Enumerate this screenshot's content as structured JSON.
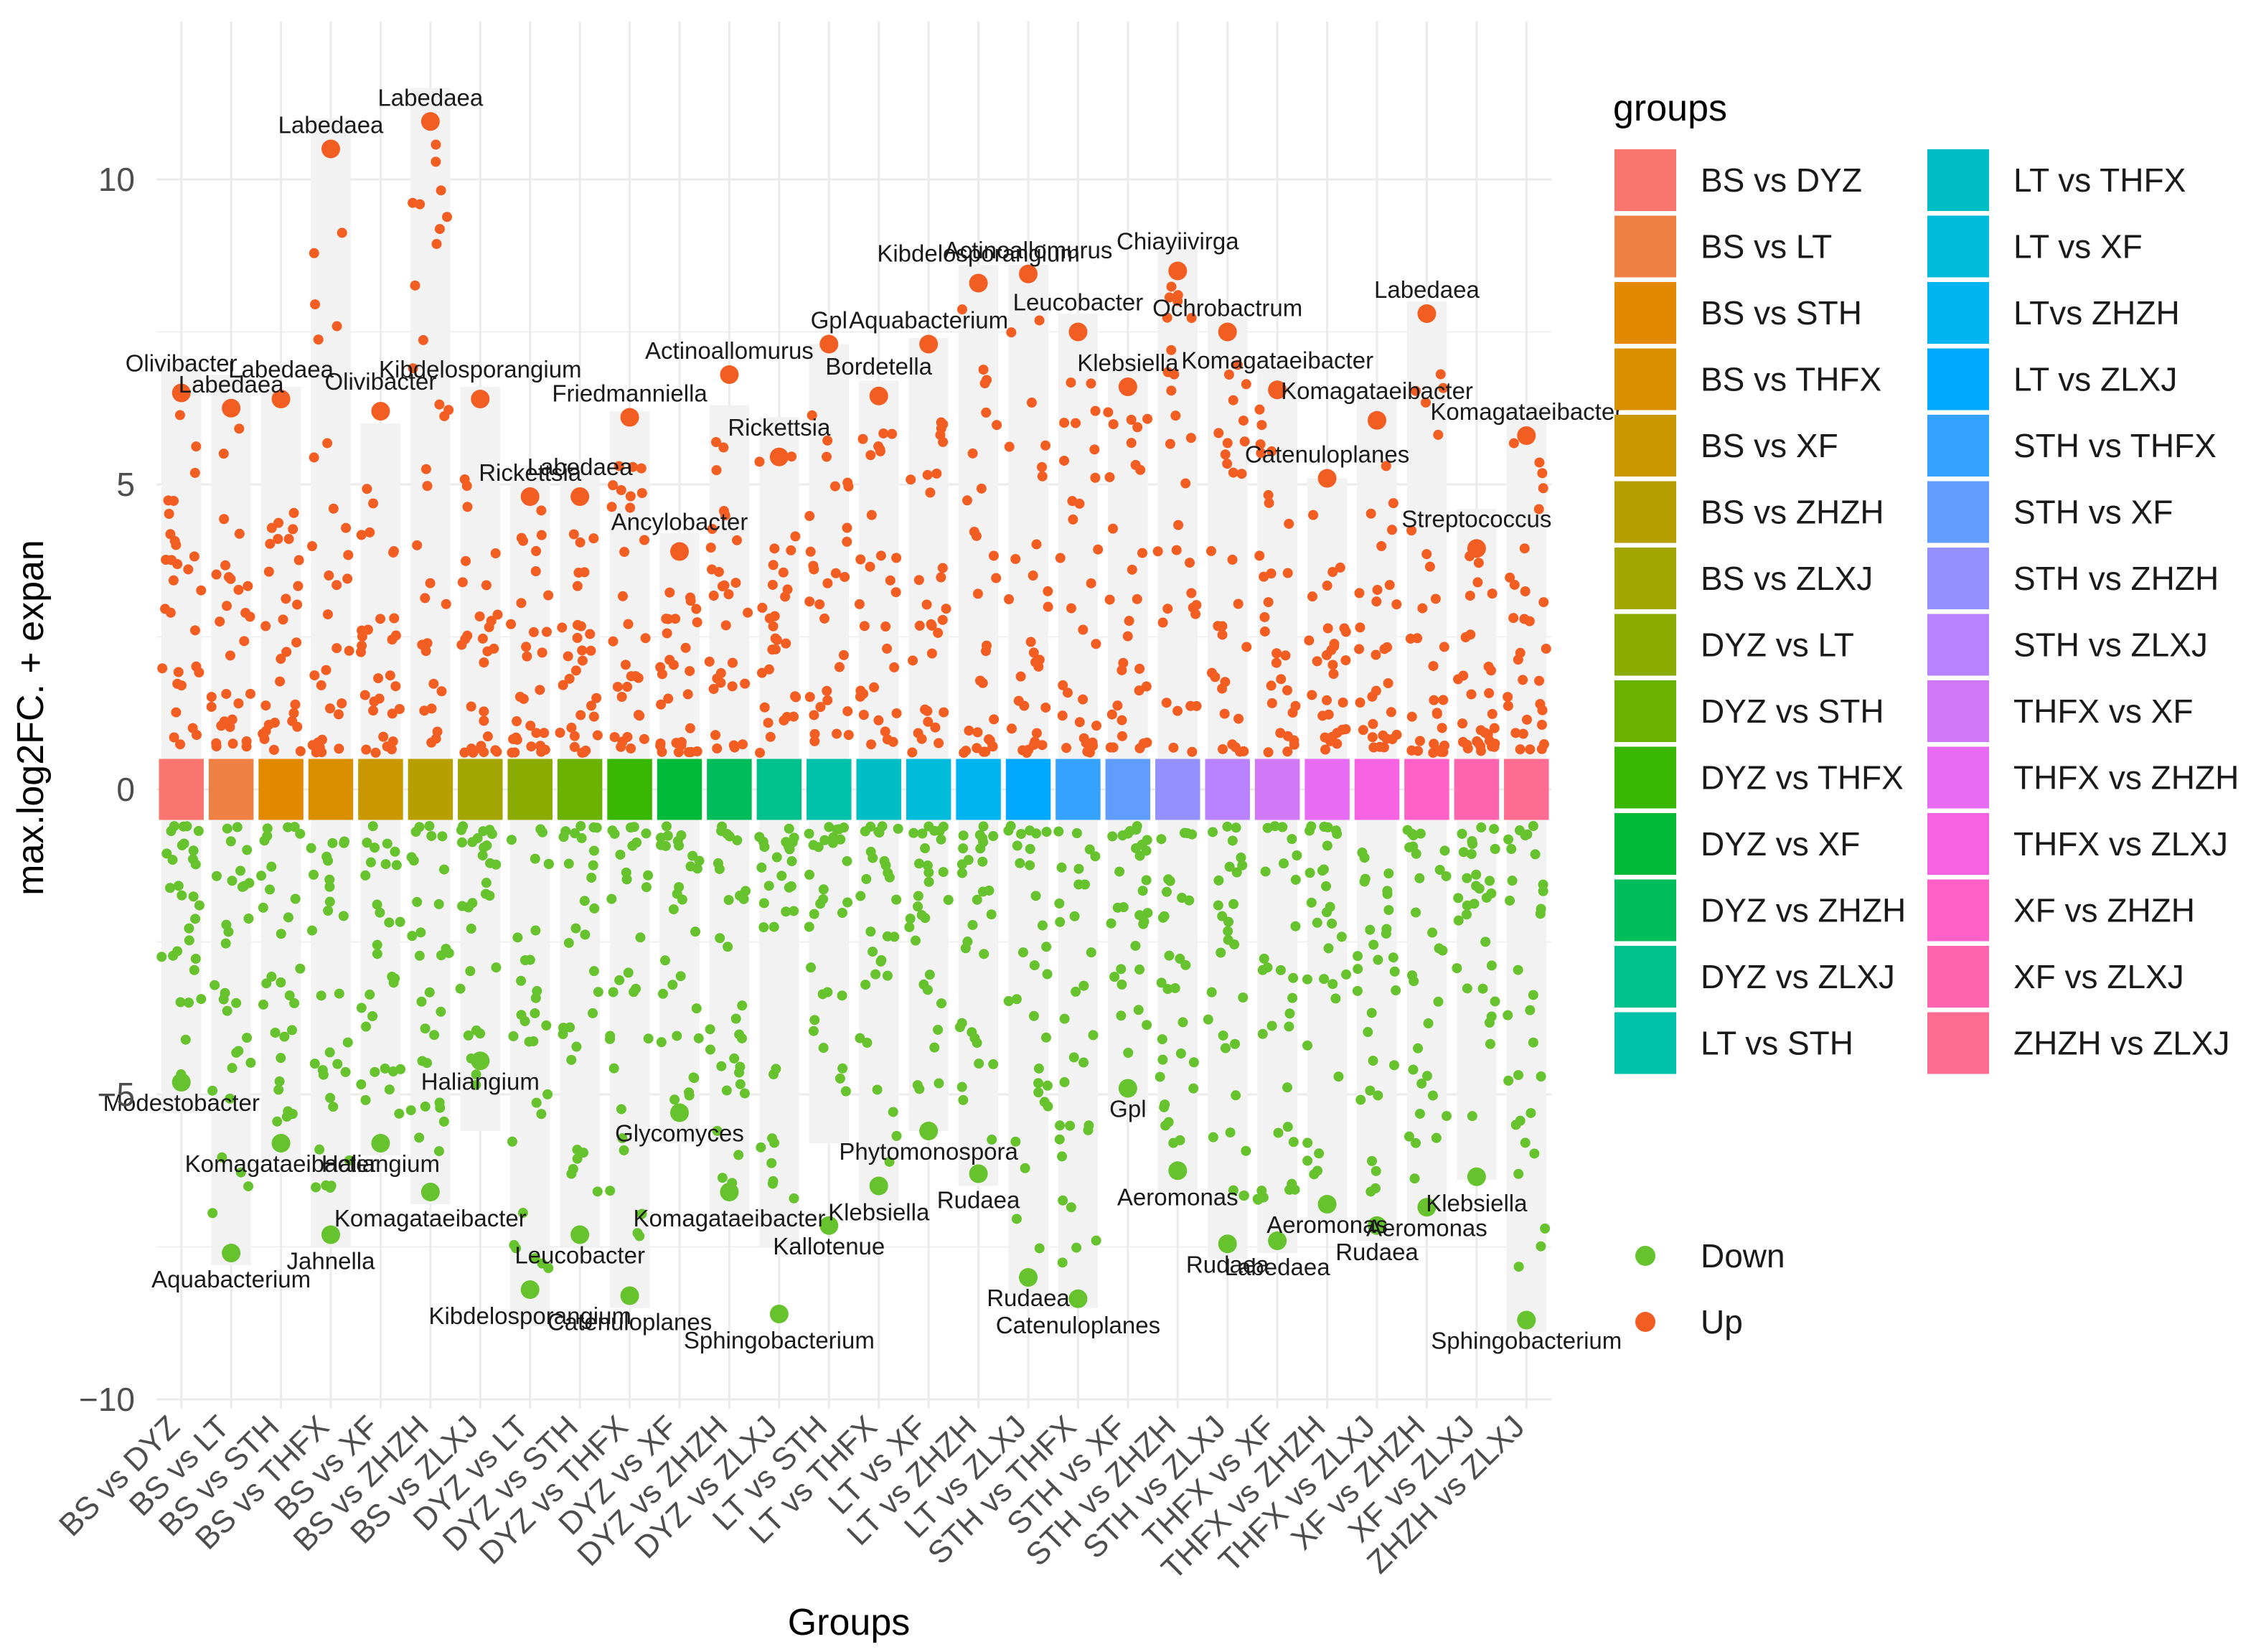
{
  "chart_data": {
    "type": "scatter",
    "xlabel": "Groups",
    "ylabel": "max.log2FC. + expan",
    "ylim": [
      -10,
      12
    ],
    "yticks": [
      -10,
      -5,
      0,
      5,
      10
    ],
    "grid": true,
    "legend_position": "right",
    "groups_legend_title": "groups",
    "categories": [
      "BS vs DYZ",
      "BS vs LT",
      "BS vs STH",
      "BS vs THFX",
      "BS vs XF",
      "BS vs ZHZH",
      "BS vs ZLXJ",
      "DYZ vs LT",
      "DYZ vs STH",
      "DYZ vs THFX",
      "DYZ vs XF",
      "DYZ vs ZHZH",
      "DYZ vs ZLXJ",
      "LT vs STH",
      "LT vs THFX",
      "LT vs XF",
      "LT vs ZHZH",
      "LT vs ZLXJ",
      "STH vs THFX",
      "STH vs XF",
      "STH vs ZHZH",
      "STH vs ZLXJ",
      "THFX vs XF",
      "THFX vs ZHZH",
      "THFX vs ZLXJ",
      "XF vs ZHZH",
      "XF vs ZLXJ",
      "ZHZH vs ZLXJ"
    ],
    "legend_labels": [
      "BS vs DYZ",
      "BS vs LT",
      "BS vs STH",
      "BS vs THFX",
      "BS vs XF",
      "BS vs ZHZH",
      "BS vs ZLXJ",
      "DYZ vs LT",
      "DYZ vs STH",
      "DYZ vs THFX",
      "DYZ vs XF",
      "DYZ vs ZHZH",
      "DYZ vs ZLXJ",
      "LT vs STH",
      "LT vs THFX",
      "LT vs XF",
      "LTvs ZHZH",
      "LT vs ZLXJ",
      "STH vs THFX",
      "STH vs XF",
      "STH vs ZHZH",
      "STH vs ZLXJ",
      "THFX vs XF",
      "THFX vs ZHZH",
      "THFX vs ZLXJ",
      "XF vs ZHZH",
      "XF vs ZLXJ",
      "ZHZH vs ZLXJ"
    ],
    "group_colors": [
      "#F8766D",
      "#EE8044",
      "#E38900",
      "#D89000",
      "#C99800",
      "#B79F00",
      "#A3A500",
      "#8BAB00",
      "#6BB100",
      "#39B600",
      "#00BA38",
      "#00BD5C",
      "#00C08B",
      "#00C1AA",
      "#00BFC4",
      "#00BBDA",
      "#00B4EF",
      "#00A9FF",
      "#35A2FF",
      "#619CFF",
      "#9590FF",
      "#B983FF",
      "#D078F6",
      "#E76BF3",
      "#F563E3",
      "#FF61C9",
      "#FF65AE",
      "#FF6C91"
    ],
    "bar_up_max": [
      7.0,
      6.8,
      6.6,
      11.0,
      6.0,
      11.5,
      6.6,
      5.2,
      5.3,
      6.2,
      4.2,
      6.3,
      6.1,
      7.3,
      6.7,
      7.4,
      8.6,
      8.6,
      7.8,
      7.0,
      8.9,
      7.8,
      6.9,
      5.1,
      6.4,
      8.0,
      4.6,
      6.3
    ],
    "bar_down_min": [
      -5.3,
      -7.8,
      -6.1,
      -7.5,
      -6.0,
      -6.8,
      -5.6,
      -8.8,
      -7.5,
      -8.5,
      -5.8,
      -7.1,
      -7.5,
      -5.8,
      -6.9,
      -5.6,
      -6.5,
      -8.3,
      -8.5,
      -5.3,
      -6.6,
      -7.7,
      -7.6,
      -7.1,
      -7.4,
      -7.2,
      -6.4,
      -8.9
    ],
    "series": [
      {
        "name": "Down",
        "color": "#66C22D"
      },
      {
        "name": "Up",
        "color": "#F25D22"
      }
    ],
    "labeled_points": [
      {
        "group": 0,
        "value": 6.5,
        "label": "Olivibacter",
        "series": "Up"
      },
      {
        "group": 1,
        "value": 6.25,
        "label": "Labedaea",
        "series": "Up"
      },
      {
        "group": 2,
        "value": 6.4,
        "label": "Labedaea",
        "series": "Up"
      },
      {
        "group": 3,
        "value": 10.5,
        "label": "Labedaea",
        "series": "Up"
      },
      {
        "group": 4,
        "value": 6.2,
        "label": "Olivibacter",
        "series": "Up"
      },
      {
        "group": 5,
        "value": 10.95,
        "label": "Labedaea",
        "series": "Up"
      },
      {
        "group": 6,
        "value": 6.4,
        "label": "Kibdelosporangium",
        "series": "Up"
      },
      {
        "group": 7,
        "value": 4.8,
        "label": "Rickettsia",
        "series": "Up"
      },
      {
        "group": 8,
        "value": 4.8,
        "label": "Labedaea",
        "series": "Up"
      },
      {
        "group": 9,
        "value": 6.1,
        "label": "Friedmanniella",
        "series": "Up"
      },
      {
        "group": 10,
        "value": 3.9,
        "label": "Ancylobacter",
        "series": "Up"
      },
      {
        "group": 11,
        "value": 6.8,
        "label": "Actinoallomurus",
        "series": "Up"
      },
      {
        "group": 12,
        "value": 5.45,
        "label": "Rickettsia",
        "series": "Up"
      },
      {
        "group": 13,
        "value": 7.3,
        "label": "Gpl",
        "series": "Up"
      },
      {
        "group": 14,
        "value": 6.45,
        "label": "Bordetella",
        "series": "Up"
      },
      {
        "group": 15,
        "value": 7.3,
        "label": "Aquabacterium",
        "series": "Up"
      },
      {
        "group": 16,
        "value": 8.3,
        "label": "Kibdelosporangium",
        "series": "Up"
      },
      {
        "group": 17,
        "value": 8.45,
        "label": "Actinoallomurus",
        "series": "Up"
      },
      {
        "group": 18,
        "value": 7.5,
        "label": "Leucobacter",
        "series": "Up"
      },
      {
        "group": 19,
        "value": 6.6,
        "label": "Klebsiella",
        "series": "Up"
      },
      {
        "group": 20,
        "value": 8.5,
        "label": "Chiayiivirga",
        "series": "Up"
      },
      {
        "group": 21,
        "value": 7.5,
        "label": "Ochrobactrum",
        "series": "Up"
      },
      {
        "group": 22,
        "value": 6.55,
        "label": "Komagataeibacter",
        "series": "Up"
      },
      {
        "group": 23,
        "value": 5.1,
        "label": "Catenuloplanes",
        "series": "Up"
      },
      {
        "group": 24,
        "value": 6.05,
        "label": "Komagataeibacter",
        "series": "Up"
      },
      {
        "group": 25,
        "value": 7.8,
        "label": "Labedaea",
        "series": "Up"
      },
      {
        "group": 26,
        "value": 3.95,
        "label": "Streptococcus",
        "series": "Up"
      },
      {
        "group": 27,
        "value": 5.8,
        "label": "Komagataeibacter",
        "series": "Up"
      },
      {
        "group": 0,
        "value": -4.8,
        "label": "Modestobacter",
        "series": "Down"
      },
      {
        "group": 1,
        "value": -7.6,
        "label": "Aquabacterium",
        "series": "Down"
      },
      {
        "group": 2,
        "value": -5.8,
        "label": "Komagataeibacter",
        "series": "Down"
      },
      {
        "group": 3,
        "value": -7.3,
        "label": "Jahnella",
        "series": "Down"
      },
      {
        "group": 4,
        "value": -5.8,
        "label": "Haliangium",
        "series": "Down"
      },
      {
        "group": 5,
        "value": -6.6,
        "label": "Komagataeibacter",
        "series": "Down"
      },
      {
        "group": 6,
        "value": -4.45,
        "label": "Haliangium",
        "series": "Down"
      },
      {
        "group": 7,
        "value": -8.2,
        "label": "Kibdelosporangium",
        "series": "Down"
      },
      {
        "group": 8,
        "value": -7.3,
        "label": "Leucobacter",
        "series": "Down"
      },
      {
        "group": 9,
        "value": -8.3,
        "label": "Catenuloplanes",
        "series": "Down"
      },
      {
        "group": 10,
        "value": -5.3,
        "label": "Glycomyces",
        "series": "Down"
      },
      {
        "group": 11,
        "value": -6.6,
        "label": "Komagataeibacter",
        "series": "Down"
      },
      {
        "group": 13,
        "value": -7.15,
        "label": "Kallotenue",
        "series": "Down"
      },
      {
        "group": 14,
        "value": -6.5,
        "label": "Klebsiella",
        "series": "Down"
      },
      {
        "group": 15,
        "value": -5.6,
        "label": "Phytomonospora",
        "series": "Down"
      },
      {
        "group": 16,
        "value": -6.3,
        "label": "Rudaea",
        "series": "Down"
      },
      {
        "group": 17,
        "value": -8.0,
        "label": "Rudaea",
        "series": "Down"
      },
      {
        "group": 18,
        "value": -8.35,
        "label": "Catenuloplanes",
        "series": "Down"
      },
      {
        "group": 19,
        "value": -4.9,
        "label": "Gpl",
        "series": "Down"
      },
      {
        "group": 20,
        "value": -6.25,
        "label": "Aeromonas",
        "series": "Down"
      },
      {
        "group": 21,
        "value": -7.45,
        "label": "Rudaea",
        "series": "Down"
      },
      {
        "group": 22,
        "value": -7.4,
        "label": "Labedaea",
        "series": "Down"
      },
      {
        "group": 23,
        "value": -6.8,
        "label": "Aeromonas",
        "series": "Down"
      },
      {
        "group": 24,
        "value": -7.15,
        "label": "Rudaea",
        "series": "Down"
      },
      {
        "group": 25,
        "value": -6.85,
        "label": "Aeromonas",
        "series": "Down"
      },
      {
        "group": 26,
        "value": -6.35,
        "label": "Klebsiella",
        "series": "Down"
      },
      {
        "group": 27,
        "value": -8.7,
        "label": "Sphingobacterium",
        "series": "Down"
      },
      {
        "group": 12,
        "value": -8.6,
        "label": "Sphingobacterium",
        "series": "Down"
      }
    ]
  }
}
